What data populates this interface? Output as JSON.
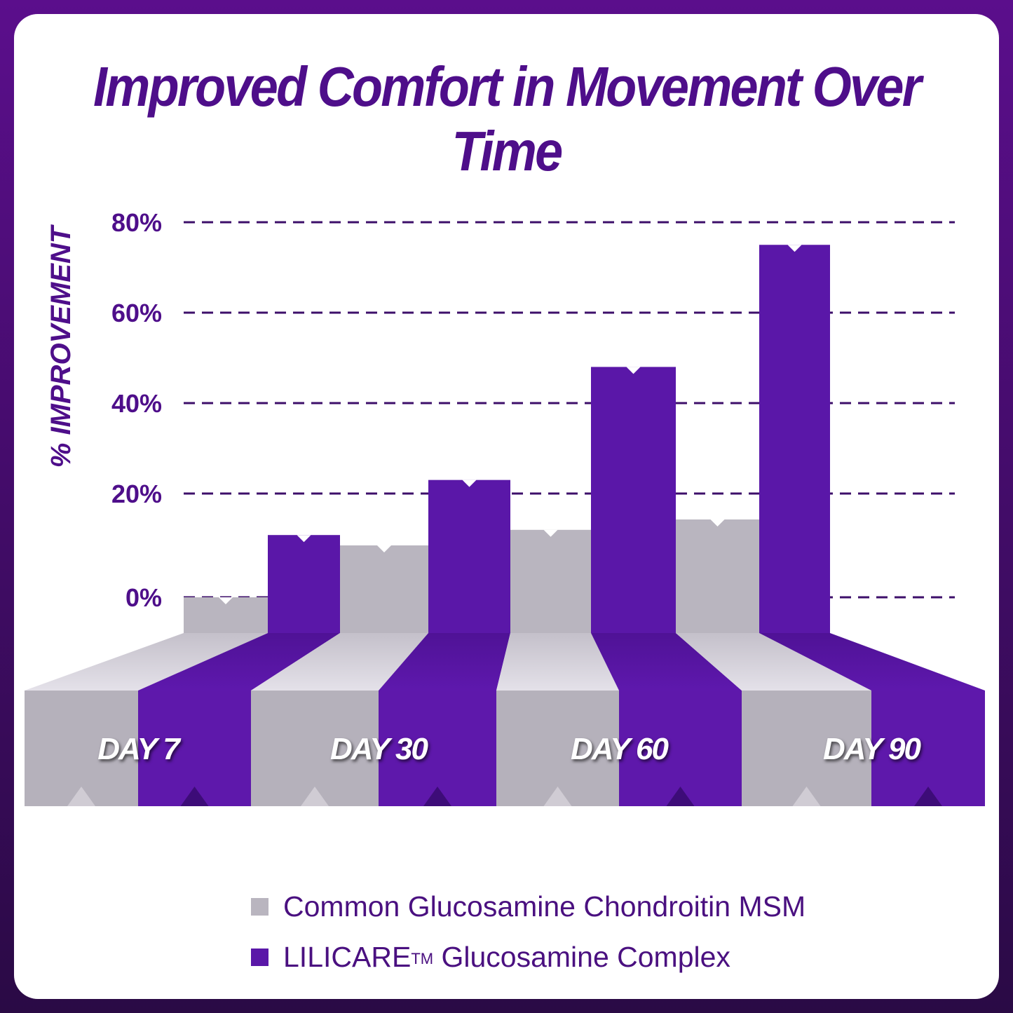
{
  "chart_data": {
    "type": "bar",
    "title": "Improved Comfort in Movement Over Time",
    "xlabel": "",
    "ylabel": "% IMPROVEMENT",
    "categories": [
      "DAY 7",
      "DAY 30",
      "DAY 60",
      "DAY 90"
    ],
    "yticks": [
      "0%",
      "20%",
      "40%",
      "60%",
      "80%"
    ],
    "ylim": [
      0,
      80
    ],
    "grid": true,
    "legend_position": "bottom",
    "series": [
      {
        "name": "Common Glucosamine Chondroitin MSM",
        "color": "#b9b5bf",
        "values": [
          0,
          10,
          13,
          15
        ]
      },
      {
        "name": "LILICARE™ Glucosamine Complex",
        "color": "#5a17a8",
        "values": [
          12,
          23,
          48,
          75
        ]
      }
    ]
  },
  "legend": {
    "item1": "Common Glucosamine Chondroitin MSM",
    "item2_brand": "LILICARE",
    "item2_tm": "TM",
    "item2_rest": " Glucosamine Complex"
  }
}
